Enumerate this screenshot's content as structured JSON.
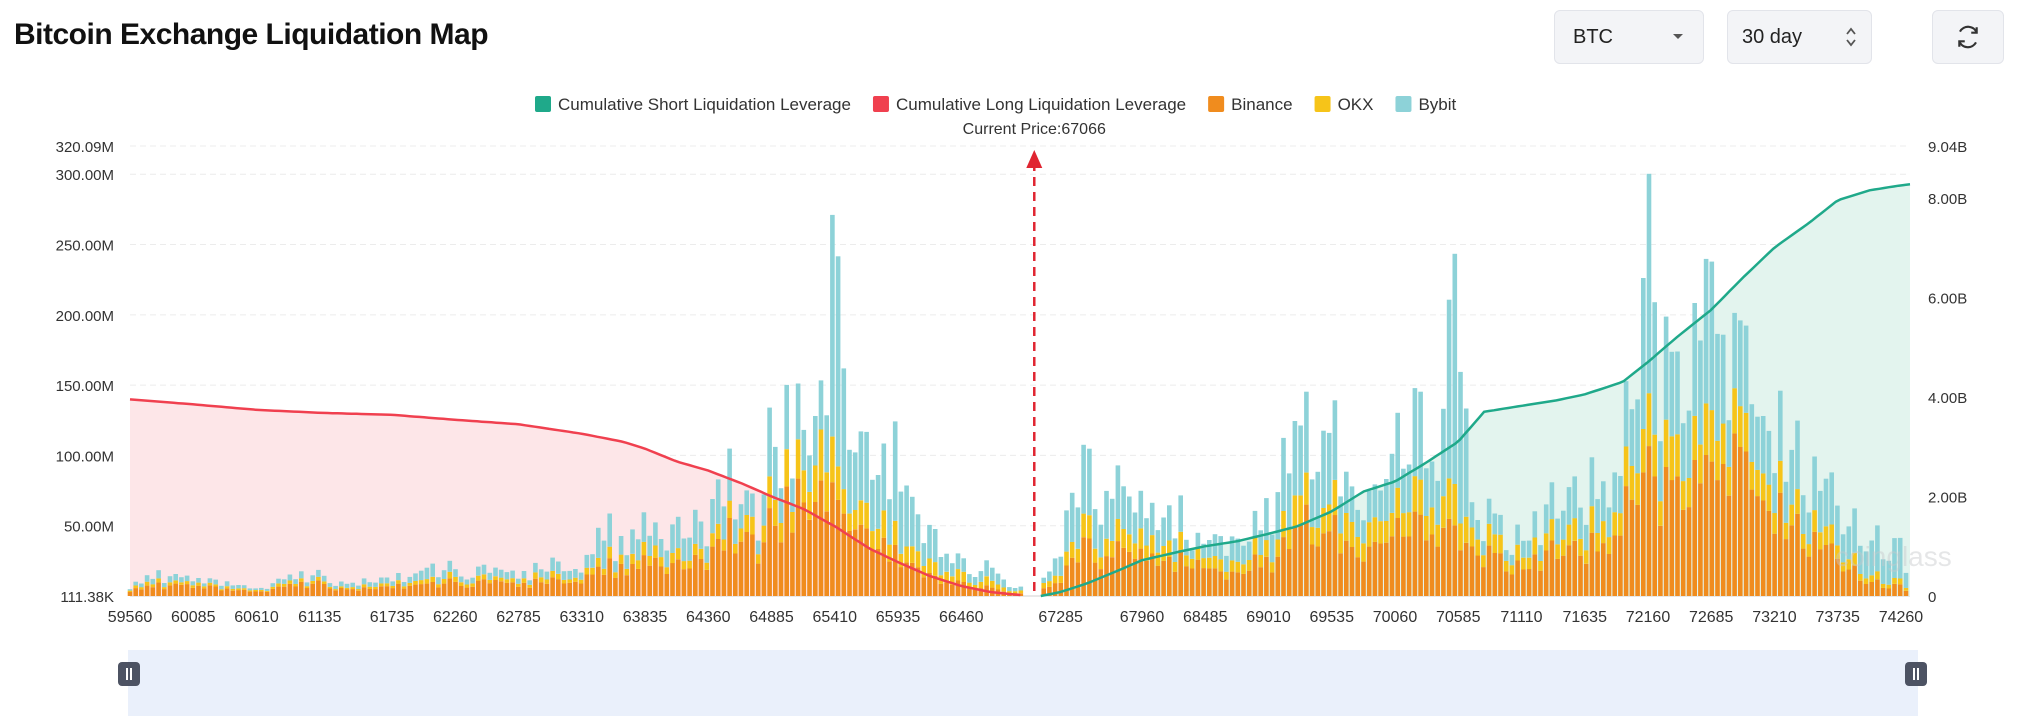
{
  "page": {
    "title": "Bitcoin Exchange Liquidation Map",
    "coin_select": {
      "value": "BTC"
    },
    "period_select": {
      "value": "30 day"
    },
    "refresh_label": "",
    "watermark": "coinglass"
  },
  "colors": {
    "short": "#1fa98a",
    "short_fill": "#e3f4ee",
    "long": "#f0404f",
    "long_fill": "#fde6e8",
    "binance": "#f08c1e",
    "okx": "#f6c419",
    "bybit": "#8dd2d8",
    "price_line": "#e02531",
    "grid": "#ececec"
  },
  "chart_data": {
    "type": "bar",
    "legend": [
      {
        "name": "Cumulative Short Liquidation Leverage",
        "color": "#1fa98a"
      },
      {
        "name": "Cumulative Long Liquidation Leverage",
        "color": "#f0404f"
      },
      {
        "name": "Binance",
        "color": "#f08c1e"
      },
      {
        "name": "OKX",
        "color": "#f6c419"
      },
      {
        "name": "Bybit",
        "color": "#8dd2d8"
      }
    ],
    "legend_position": "top-center",
    "current_price_label": "Current Price:67066",
    "current_price": 67066,
    "x_range": [
      59560,
      74335
    ],
    "x_tick_labels": [
      "59560",
      "60085",
      "60610",
      "61135",
      "61735",
      "62260",
      "62785",
      "63310",
      "63835",
      "64360",
      "64885",
      "65410",
      "65935",
      "66460",
      "67285",
      "67960",
      "68485",
      "69010",
      "69535",
      "70060",
      "70585",
      "71110",
      "71635",
      "72160",
      "72685",
      "73210",
      "73735",
      "74260"
    ],
    "y_left": {
      "unit": "USD",
      "min": 0,
      "max": 320090000,
      "ticks": [
        {
          "value": 320090000,
          "label": "320.09M"
        },
        {
          "value": 300000000,
          "label": "300.00M"
        },
        {
          "value": 250000000,
          "label": "250.00M"
        },
        {
          "value": 200000000,
          "label": "200.00M"
        },
        {
          "value": 150000000,
          "label": "150.00M"
        },
        {
          "value": 100000000,
          "label": "100.00M"
        },
        {
          "value": 50000000,
          "label": "50.00M"
        },
        {
          "value": 0,
          "label": "111.38K"
        }
      ]
    },
    "y_right": {
      "unit": "USD",
      "min": 0,
      "max": 9040000000,
      "ticks": [
        {
          "value": 9040000000,
          "label": "9.04B"
        },
        {
          "value": 8000000000,
          "label": "8.00B"
        },
        {
          "value": 6000000000,
          "label": "6.00B"
        },
        {
          "value": 4000000000,
          "label": "4.00B"
        },
        {
          "value": 2000000000,
          "label": "2.00B"
        },
        {
          "value": 0,
          "label": "0"
        }
      ]
    },
    "grid": true,
    "bar_anchors_in_millions": [
      [
        59560,
        3,
        1,
        1
      ],
      [
        59620,
        6,
        2,
        3
      ],
      [
        59700,
        8,
        3,
        5
      ],
      [
        59800,
        10,
        3,
        6
      ],
      [
        59900,
        7,
        2,
        4
      ],
      [
        60000,
        9,
        2,
        4
      ],
      [
        60085,
        6,
        2,
        3
      ],
      [
        60200,
        8,
        2,
        3
      ],
      [
        60300,
        5,
        1,
        3
      ],
      [
        60400,
        6,
        2,
        4
      ],
      [
        60500,
        4,
        1,
        2
      ],
      [
        60610,
        3,
        1,
        1
      ],
      [
        60700,
        4,
        1,
        2
      ],
      [
        60800,
        6,
        2,
        3
      ],
      [
        60950,
        8,
        2,
        4
      ],
      [
        61135,
        9,
        2,
        4
      ],
      [
        61300,
        5,
        1,
        3
      ],
      [
        61500,
        6,
        2,
        4
      ],
      [
        61735,
        7,
        2,
        4
      ],
      [
        61900,
        10,
        3,
        6
      ],
      [
        62050,
        8,
        3,
        8
      ],
      [
        62260,
        11,
        4,
        6
      ],
      [
        62400,
        8,
        3,
        5
      ],
      [
        62600,
        13,
        3,
        7
      ],
      [
        62785,
        9,
        3,
        5
      ],
      [
        62950,
        11,
        4,
        6
      ],
      [
        63100,
        12,
        4,
        9
      ],
      [
        63200,
        15,
        4,
        10
      ],
      [
        63310,
        16,
        5,
        9
      ],
      [
        63400,
        19,
        6,
        12
      ],
      [
        63500,
        25,
        7,
        34
      ],
      [
        63560,
        22,
        7,
        14
      ],
      [
        63650,
        21,
        6,
        12
      ],
      [
        63750,
        25,
        8,
        20
      ],
      [
        63835,
        28,
        9,
        20
      ],
      [
        63950,
        25,
        8,
        14
      ],
      [
        64050,
        23,
        7,
        20
      ],
      [
        64150,
        26,
        8,
        22
      ],
      [
        64250,
        30,
        8,
        25
      ],
      [
        64360,
        25,
        7,
        15
      ],
      [
        64450,
        38,
        10,
        30
      ],
      [
        64550,
        46,
        10,
        30
      ],
      [
        64650,
        36,
        9,
        14
      ],
      [
        64750,
        40,
        12,
        15
      ],
      [
        64800,
        43,
        12,
        20
      ],
      [
        64885,
        56,
        21,
        47
      ],
      [
        64950,
        60,
        22,
        40
      ],
      [
        65050,
        65,
        21,
        35
      ],
      [
        65150,
        70,
        24,
        30
      ],
      [
        65250,
        72,
        28,
        38
      ],
      [
        65330,
        84,
        40,
        30
      ],
      [
        65410,
        75,
        28,
        190
      ],
      [
        65480,
        60,
        18,
        91
      ],
      [
        65550,
        62,
        16,
        50
      ],
      [
        65650,
        54,
        20,
        55
      ],
      [
        65750,
        48,
        20,
        55
      ],
      [
        65850,
        40,
        20,
        46
      ],
      [
        65935,
        35,
        16,
        80
      ],
      [
        66030,
        25,
        12,
        40
      ],
      [
        66130,
        22,
        13,
        25
      ],
      [
        66230,
        18,
        12,
        30
      ],
      [
        66340,
        13,
        10,
        17
      ],
      [
        66460,
        11,
        8,
        10
      ],
      [
        66560,
        8,
        6,
        10
      ],
      [
        66680,
        6,
        5,
        9
      ],
      [
        66790,
        4,
        3,
        7
      ],
      [
        66900,
        3,
        3,
        4
      ],
      [
        66990,
        2,
        2,
        3
      ],
      [
        67150,
        6,
        4,
        4
      ],
      [
        67220,
        8,
        5,
        10
      ],
      [
        67285,
        15,
        8,
        22
      ],
      [
        67400,
        30,
        12,
        38
      ],
      [
        67500,
        35,
        14,
        40
      ],
      [
        67650,
        34,
        15,
        42
      ],
      [
        67800,
        36,
        14,
        32
      ],
      [
        67960,
        28,
        12,
        22
      ],
      [
        68100,
        23,
        10,
        17
      ],
      [
        68250,
        25,
        10,
        25
      ],
      [
        68380,
        34,
        12,
        10
      ],
      [
        68485,
        25,
        9,
        14
      ],
      [
        68600,
        16,
        8,
        15
      ],
      [
        68750,
        18,
        8,
        18
      ],
      [
        68900,
        24,
        10,
        15
      ],
      [
        69010,
        28,
        12,
        32
      ],
      [
        69150,
        36,
        16,
        45
      ],
      [
        69250,
        54,
        24,
        56
      ],
      [
        69350,
        62,
        20,
        52
      ],
      [
        69450,
        55,
        22,
        70
      ],
      [
        69535,
        48,
        20,
        50
      ],
      [
        69650,
        40,
        20,
        30
      ],
      [
        69800,
        30,
        16,
        20
      ],
      [
        69950,
        38,
        16,
        22
      ],
      [
        70060,
        52,
        20,
        56
      ],
      [
        70150,
        60,
        24,
        40
      ],
      [
        70250,
        56,
        24,
        66
      ],
      [
        70350,
        50,
        22,
        35
      ],
      [
        70450,
        45,
        20,
        45
      ],
      [
        70585,
        52,
        32,
        196
      ],
      [
        70700,
        42,
        16,
        20
      ],
      [
        70850,
        32,
        14,
        16
      ],
      [
        71000,
        28,
        12,
        12
      ],
      [
        71110,
        22,
        10,
        14
      ],
      [
        71300,
        32,
        12,
        20
      ],
      [
        71450,
        35,
        14,
        25
      ],
      [
        71635,
        38,
        16,
        30
      ],
      [
        71800,
        48,
        20,
        36
      ],
      [
        71950,
        60,
        22,
        36
      ],
      [
        72050,
        75,
        26,
        44
      ],
      [
        72160,
        85,
        30,
        130
      ],
      [
        72250,
        92,
        32,
        80
      ],
      [
        72350,
        68,
        26,
        50
      ],
      [
        72450,
        90,
        30,
        60
      ],
      [
        72550,
        108,
        35,
        90
      ],
      [
        72685,
        98,
        38,
        110
      ],
      [
        72750,
        92,
        30,
        80
      ],
      [
        72850,
        125,
        35,
        50
      ],
      [
        72950,
        110,
        30,
        70
      ],
      [
        73050,
        118,
        30,
        60
      ],
      [
        73130,
        96,
        28,
        60
      ],
      [
        73210,
        78,
        26,
        50
      ],
      [
        73300,
        70,
        20,
        50
      ],
      [
        73400,
        60,
        18,
        50
      ],
      [
        73500,
        50,
        16,
        40
      ],
      [
        73600,
        38,
        14,
        34
      ],
      [
        73735,
        28,
        10,
        30
      ],
      [
        73850,
        20,
        8,
        26
      ],
      [
        73950,
        13,
        6,
        28
      ],
      [
        74100,
        10,
        5,
        30
      ],
      [
        74260,
        8,
        4,
        28
      ],
      [
        74335,
        4,
        3,
        8
      ]
    ],
    "bar_columns": [
      "x",
      "binance",
      "okx",
      "bybit"
    ],
    "cumulative_long_anchors_in_billions": [
      [
        59560,
        3.95
      ],
      [
        60085,
        3.85
      ],
      [
        60610,
        3.74
      ],
      [
        61135,
        3.68
      ],
      [
        61735,
        3.64
      ],
      [
        62260,
        3.54
      ],
      [
        62785,
        3.45
      ],
      [
        63310,
        3.26
      ],
      [
        63650,
        3.1
      ],
      [
        63835,
        2.96
      ],
      [
        64100,
        2.7
      ],
      [
        64360,
        2.52
      ],
      [
        64650,
        2.25
      ],
      [
        64885,
        2.0
      ],
      [
        65150,
        1.75
      ],
      [
        65410,
        1.4
      ],
      [
        65700,
        0.95
      ],
      [
        65935,
        0.68
      ],
      [
        66200,
        0.4
      ],
      [
        66460,
        0.2
      ],
      [
        66700,
        0.08
      ],
      [
        66950,
        0.02
      ]
    ],
    "cumulative_short_anchors_in_billions": [
      [
        67120,
        0.0
      ],
      [
        67285,
        0.08
      ],
      [
        67500,
        0.25
      ],
      [
        67800,
        0.55
      ],
      [
        67960,
        0.72
      ],
      [
        68250,
        0.88
      ],
      [
        68485,
        1.0
      ],
      [
        68750,
        1.1
      ],
      [
        69010,
        1.25
      ],
      [
        69250,
        1.4
      ],
      [
        69535,
        1.7
      ],
      [
        69800,
        2.1
      ],
      [
        70060,
        2.3
      ],
      [
        70300,
        2.65
      ],
      [
        70585,
        3.1
      ],
      [
        70800,
        3.7
      ],
      [
        71110,
        3.82
      ],
      [
        71400,
        3.93
      ],
      [
        71635,
        4.05
      ],
      [
        71950,
        4.3
      ],
      [
        72160,
        4.7
      ],
      [
        72400,
        5.2
      ],
      [
        72685,
        5.75
      ],
      [
        72950,
        6.4
      ],
      [
        73210,
        7.0
      ],
      [
        73500,
        7.5
      ],
      [
        73735,
        7.95
      ],
      [
        74000,
        8.15
      ],
      [
        74260,
        8.25
      ],
      [
        74335,
        8.27
      ]
    ]
  }
}
